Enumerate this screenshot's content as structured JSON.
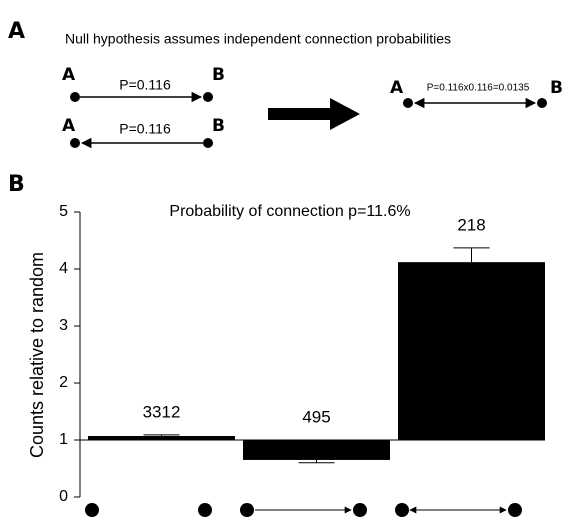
{
  "panel_a": {
    "label": "A",
    "title": "Null hypothesis assumes independent connection probabilities",
    "left_pairs": [
      {
        "from": "A",
        "to": "B",
        "probability": "P=0.116"
      },
      {
        "from": "A",
        "to": "B",
        "probability": "P=0.116"
      }
    ],
    "result": {
      "from": "A",
      "to": "B",
      "probability": "P=0.116x0.116=0.0135"
    }
  },
  "chart_data": {
    "type": "bar",
    "panel_label": "B",
    "title": "Probability of connection p=11.6%",
    "y_label": "Counts relative to random",
    "categories": [
      null,
      null,
      null
    ],
    "series": [
      {
        "color": "#000000",
        "values": [
          1.07,
          0.65,
          4.12
        ],
        "errors": [
          0.02,
          0.05,
          0.25
        ],
        "count_labels": [
          "3312",
          "495",
          "218"
        ]
      }
    ],
    "baseline": 1,
    "ylim": [
      0,
      5
    ],
    "yticks": [
      0,
      1,
      2,
      3,
      4,
      5
    ]
  }
}
